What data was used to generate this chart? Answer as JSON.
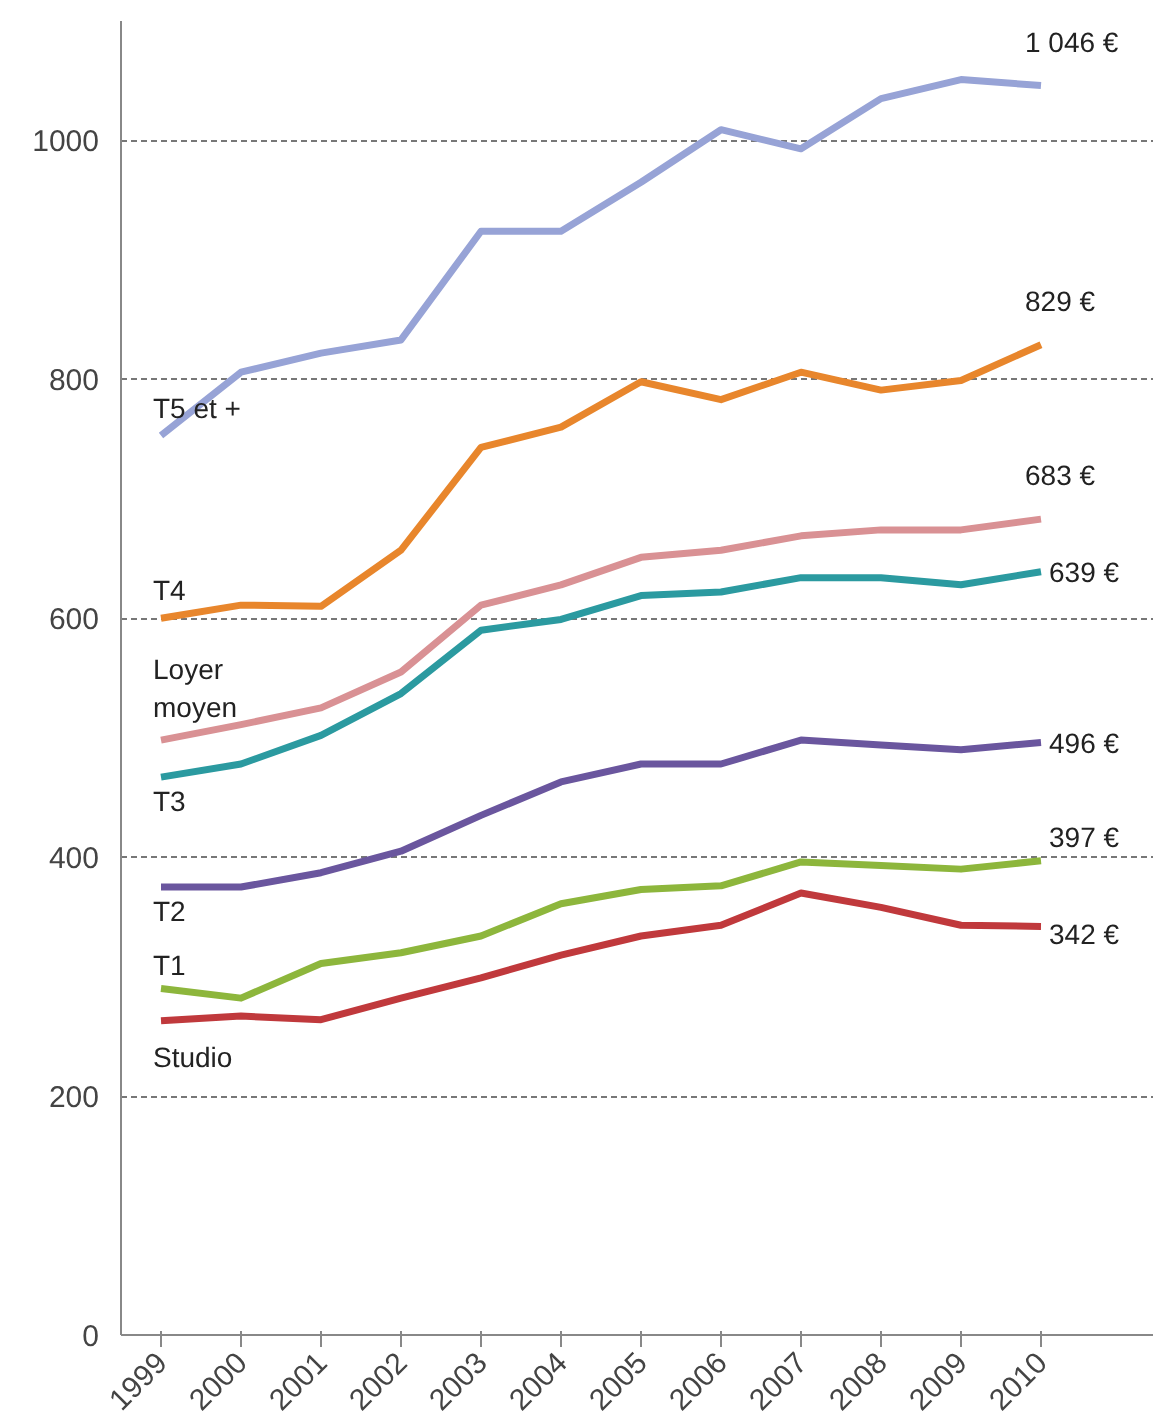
{
  "chart_data": {
    "type": "line",
    "categories": [
      "1999",
      "2000",
      "2001",
      "2002",
      "2003",
      "2004",
      "2005",
      "2006",
      "2007",
      "2008",
      "2009",
      "2010"
    ],
    "ylim": [
      0,
      1100
    ],
    "yticks": [
      0,
      200,
      400,
      600,
      800,
      1000
    ],
    "grid": "y",
    "series": [
      {
        "name": "T5 et +",
        "color": "#97a3d6",
        "values": [
          753,
          806,
          822,
          833,
          924,
          924,
          965,
          1009,
          993,
          1035,
          1051,
          1046
        ],
        "value_labels": [
          null,
          null,
          null,
          null,
          null,
          null,
          null,
          null,
          null,
          null,
          null,
          "1 046 €"
        ]
      },
      {
        "name": "T4",
        "color": "#e8862c",
        "values": [
          600,
          611,
          610,
          657,
          743,
          760,
          798,
          783,
          806,
          791,
          799,
          829
        ],
        "value_labels": [
          null,
          null,
          null,
          null,
          null,
          null,
          null,
          null,
          null,
          null,
          null,
          "829 €"
        ]
      },
      {
        "name": "Loyer moyen",
        "color": "#d99194",
        "values": [
          498,
          511,
          525,
          555,
          611,
          628,
          651,
          657,
          669,
          674,
          674,
          683
        ],
        "value_labels": [
          null,
          null,
          null,
          null,
          null,
          null,
          null,
          null,
          null,
          null,
          null,
          "683 €"
        ]
      },
      {
        "name": "T3",
        "color": "#2b9aa0",
        "values": [
          467,
          478,
          502,
          537,
          590,
          599,
          619,
          622,
          634,
          634,
          628,
          639
        ],
        "value_labels": [
          null,
          null,
          null,
          null,
          null,
          null,
          null,
          null,
          null,
          null,
          null,
          "639 €"
        ]
      },
      {
        "name": "T2",
        "color": "#6a569e",
        "values": [
          375,
          375,
          387,
          405,
          435,
          463,
          478,
          478,
          498,
          494,
          490,
          496
        ],
        "value_labels": [
          null,
          null,
          null,
          null,
          null,
          null,
          null,
          null,
          null,
          null,
          null,
          "496 €"
        ]
      },
      {
        "name": "T1",
        "color": "#8db63c",
        "values": [
          290,
          282,
          311,
          320,
          334,
          361,
          373,
          376,
          396,
          393,
          390,
          397
        ],
        "value_labels": [
          null,
          null,
          null,
          null,
          null,
          null,
          null,
          null,
          null,
          null,
          null,
          "397 €"
        ]
      },
      {
        "name": "Studio",
        "color": "#c0393c",
        "values": [
          263,
          267,
          264,
          282,
          299,
          318,
          334,
          343,
          370,
          358,
          343,
          342
        ],
        "value_labels": [
          null,
          null,
          null,
          null,
          null,
          null,
          null,
          null,
          null,
          null,
          null,
          "342 €"
        ]
      }
    ]
  }
}
